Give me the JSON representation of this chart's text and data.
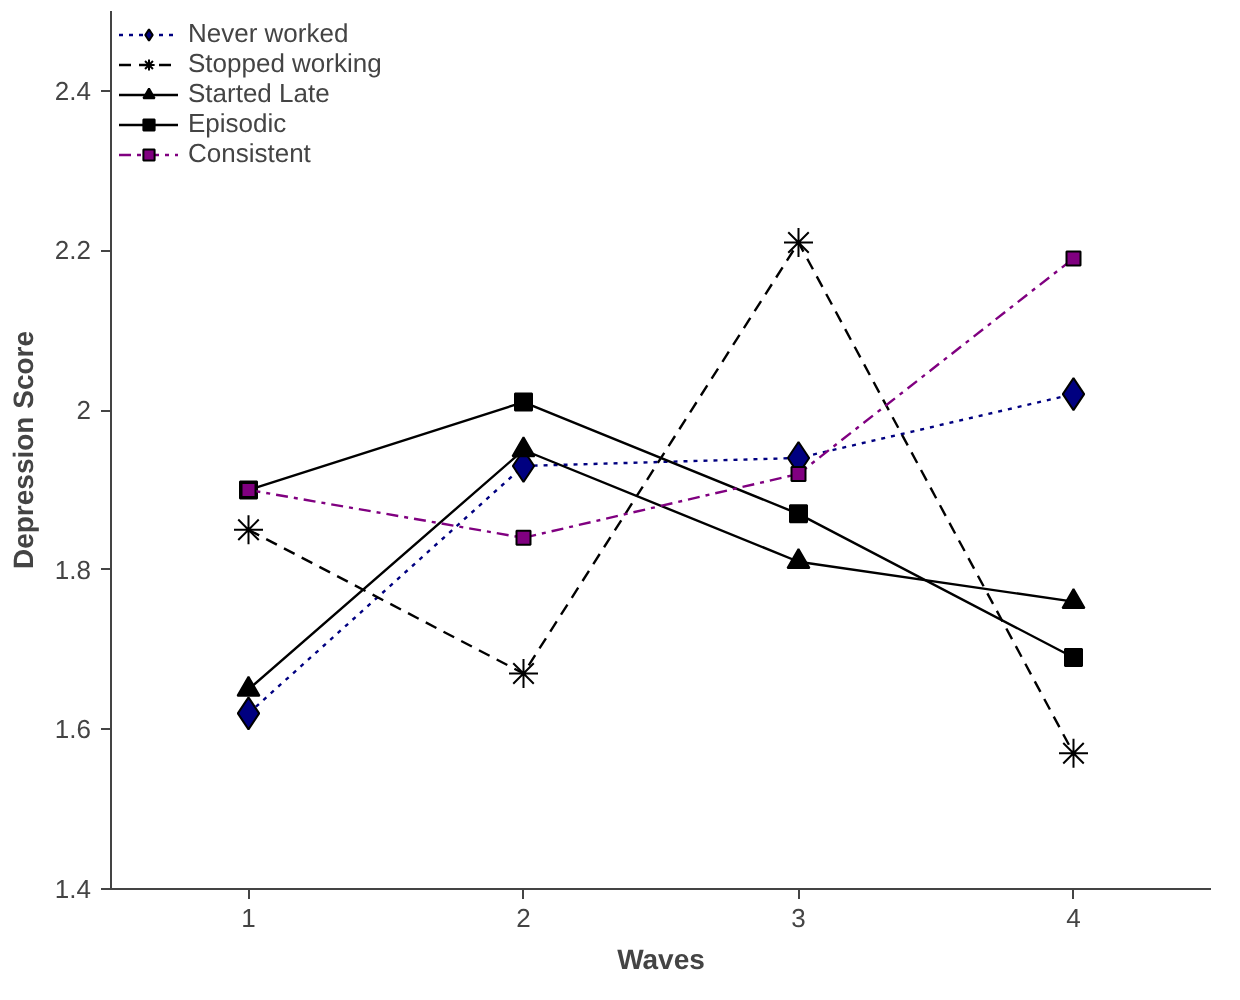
{
  "chart_data": {
    "type": "line",
    "xlabel": "Waves",
    "ylabel": "Depression Score",
    "x": [
      1,
      2,
      3,
      4
    ],
    "xlim": [
      0.5,
      4.5
    ],
    "xticks": [
      1,
      2,
      3,
      4
    ],
    "ylim": [
      1.4,
      2.5
    ],
    "yticks": [
      1.4,
      1.6,
      1.8,
      {
        "value": 2.0,
        "label": "2"
      },
      2.2,
      2.4
    ],
    "grid": false,
    "legend": "top left",
    "series": [
      {
        "name": "Never worked",
        "color": "#000080",
        "marker": "diamond",
        "line_style": "dotted",
        "values": [
          1.62,
          1.93,
          1.94,
          2.02
        ]
      },
      {
        "name": "Stopped working",
        "color": "#000000",
        "marker": "cross",
        "line_style": "dashed",
        "values": [
          1.85,
          1.67,
          2.21,
          1.57
        ]
      },
      {
        "name": "Started Late",
        "color": "#000000",
        "marker": "triangle",
        "line_style": "solid",
        "values": [
          1.65,
          1.95,
          1.81,
          1.76
        ]
      },
      {
        "name": "Episodic",
        "color": "#000000",
        "marker": "square",
        "line_style": "solid",
        "values": [
          1.9,
          2.01,
          1.87,
          1.69
        ]
      },
      {
        "name": "Consistent",
        "color": "#800080",
        "marker": "square",
        "line_style": "dashdot",
        "values": [
          1.9,
          1.84,
          1.92,
          2.19
        ]
      }
    ]
  }
}
